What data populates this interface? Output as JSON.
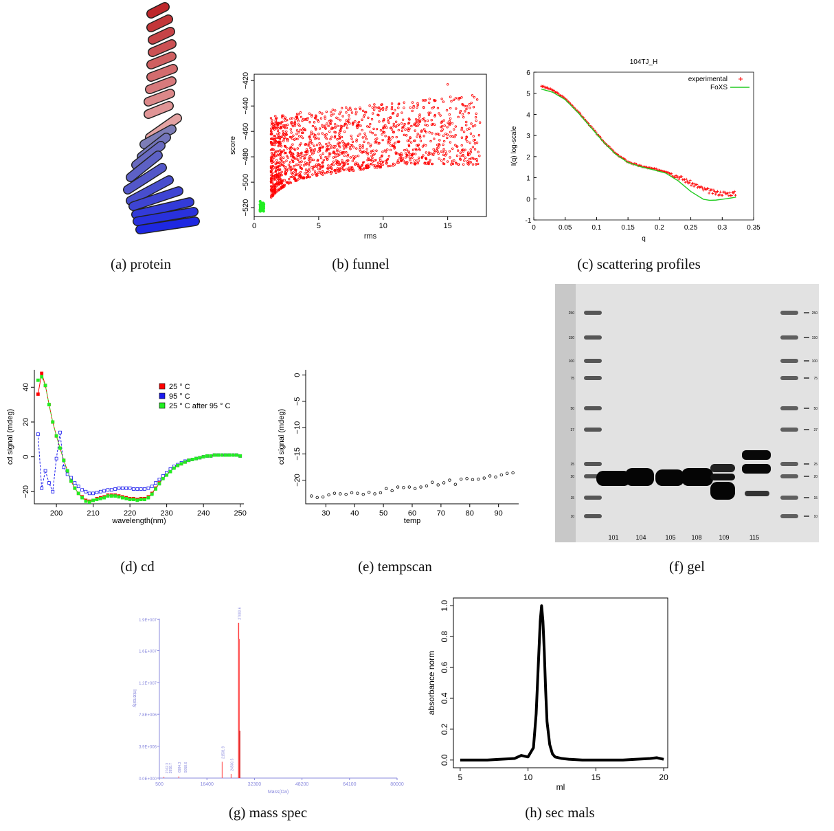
{
  "captions": {
    "a": "(a) protein",
    "b": "(b) funnel",
    "c": "(c) scattering profiles",
    "d": "(d) cd",
    "e": "(e) tempscan",
    "f": "(f) gel",
    "g": "(g) mass spec",
    "h": "(h) sec mals"
  },
  "colors": {
    "red": "#ff0000",
    "green": "#22ee22",
    "blue": "#1a1aee",
    "gel_bg": "#e2e2e2",
    "protein_top": "#c0282a",
    "protein_bottom": "#1c28e0"
  },
  "chart_data": [
    {
      "id": "funnel",
      "type": "scatter",
      "xlabel": "rms",
      "ylabel": "score",
      "xlim": [
        0,
        18
      ],
      "ylim": [
        -527,
        -415
      ],
      "xticks": [
        0,
        5,
        10,
        15
      ],
      "yticks": [
        -520,
        -500,
        -480,
        -460,
        -440,
        -420
      ],
      "series": [
        {
          "color": "#ff0000",
          "description_points": [
            [
              2,
              -490
            ],
            [
              3,
              -480
            ],
            [
              4,
              -470
            ],
            [
              5,
              -462
            ],
            [
              6,
              -458
            ],
            [
              8,
              -455
            ],
            [
              10,
              -452
            ],
            [
              12,
              -450
            ],
            [
              14,
              -448
            ],
            [
              16,
              -444
            ],
            [
              17.5,
              -453
            ],
            [
              15,
              -423
            ]
          ]
        },
        {
          "color": "#22ee22",
          "points": [
            [
              0.5,
              -516
            ],
            [
              0.6,
              -520
            ],
            [
              0.7,
              -523
            ],
            [
              0.55,
              -518
            ],
            [
              0.65,
              -521
            ]
          ]
        }
      ]
    },
    {
      "id": "scattering",
      "type": "line",
      "title": "104TJ_H",
      "xlabel": "q",
      "ylabel": "I(q) log-scale",
      "xlim": [
        0,
        0.35
      ],
      "ylim": [
        -1,
        6
      ],
      "xticks": [
        "0",
        "0.05",
        "0.1",
        "0.15",
        "0.2",
        "0.25",
        "0.3",
        "0.35"
      ],
      "yticks": [
        "-1",
        "0",
        "1",
        "2",
        "3",
        "4",
        "5",
        "6"
      ],
      "legend": [
        "experimental",
        "FoXS"
      ],
      "series": [
        {
          "name": "experimental",
          "color": "#ff0000",
          "x": [
            0.012,
            0.03,
            0.05,
            0.07,
            0.09,
            0.11,
            0.13,
            0.15,
            0.17,
            0.19,
            0.21,
            0.23,
            0.25,
            0.27,
            0.29,
            0.31,
            0.322
          ],
          "y": [
            5.35,
            5.15,
            4.75,
            4.15,
            3.45,
            2.75,
            2.15,
            1.75,
            1.55,
            1.42,
            1.3,
            1.05,
            0.75,
            0.45,
            0.28,
            0.25,
            0.25
          ]
        },
        {
          "name": "FoXS",
          "color": "#22cc22",
          "x": [
            0.012,
            0.03,
            0.05,
            0.07,
            0.09,
            0.11,
            0.13,
            0.15,
            0.17,
            0.19,
            0.21,
            0.23,
            0.25,
            0.27,
            0.28,
            0.29,
            0.31,
            0.322
          ],
          "y": [
            5.2,
            5.05,
            4.7,
            4.1,
            3.42,
            2.72,
            2.12,
            1.72,
            1.52,
            1.38,
            1.22,
            0.85,
            0.35,
            -0.02,
            -0.07,
            -0.06,
            0.02,
            0.08
          ]
        }
      ]
    },
    {
      "id": "cd",
      "type": "line",
      "xlabel": "wavelength(nm)",
      "ylabel": "cd signal (mdeg)",
      "xlim": [
        194,
        251
      ],
      "ylim": [
        -27,
        50
      ],
      "xticks": [
        200,
        210,
        220,
        230,
        240,
        250
      ],
      "yticks": [
        -20,
        0,
        20,
        40
      ],
      "legend": [
        "25 ° C",
        "95 ° C",
        "25 ° C after 95 ° C"
      ],
      "x": [
        195,
        196,
        197,
        198,
        199,
        200,
        201,
        202,
        203,
        204,
        205,
        206,
        207,
        208,
        209,
        210,
        211,
        212,
        213,
        214,
        215,
        216,
        217,
        218,
        219,
        220,
        221,
        222,
        223,
        224,
        225,
        226,
        227,
        228,
        229,
        230,
        231,
        232,
        233,
        234,
        235,
        236,
        237,
        238,
        239,
        240,
        241,
        242,
        243,
        244,
        245,
        246,
        247,
        248,
        249,
        250
      ],
      "series": [
        {
          "name": "25 ° C",
          "color": "#ff0000",
          "y": [
            36,
            48,
            41,
            30,
            20,
            12,
            5,
            -2,
            -8,
            -14,
            -18,
            -21,
            -23,
            -25,
            -25.5,
            -25,
            -24,
            -23.5,
            -23,
            -22,
            -22,
            -22,
            -22.5,
            -23,
            -23.5,
            -24,
            -24,
            -24.5,
            -24,
            -24,
            -23,
            -21,
            -18,
            -15,
            -12,
            -10,
            -8,
            -6,
            -5,
            -4,
            -3,
            -2,
            -1.5,
            -1,
            -0.5,
            0,
            0.5,
            0.5,
            1,
            1,
            1,
            1,
            1,
            1,
            1,
            0.5
          ]
        },
        {
          "name": "95 ° C",
          "color": "#1a1aee",
          "y": [
            13,
            -18,
            -8,
            -15,
            -20,
            -1,
            14,
            -6,
            -10,
            -12,
            -15,
            -17,
            -19,
            -20,
            -21,
            -21,
            -20.5,
            -20,
            -19.5,
            -19,
            -19,
            -18.5,
            -18,
            -18,
            -18,
            -18,
            -18.5,
            -18.5,
            -18.5,
            -18.5,
            -18,
            -17,
            -15,
            -13,
            -11,
            -9,
            -7,
            -5.5,
            -4.5,
            -3.5,
            -2.5,
            -2,
            -1.5,
            -1,
            -0.5,
            0,
            0.5,
            0.5,
            1,
            1,
            1,
            1,
            1,
            1,
            1,
            0.5
          ]
        },
        {
          "name": "25 ° C after 95 ° C",
          "color": "#22ee22",
          "y": [
            44,
            46,
            41,
            30,
            20,
            12,
            5,
            -2,
            -8,
            -14,
            -18,
            -21,
            -23.5,
            -25.5,
            -26,
            -25,
            -24.5,
            -24,
            -23.5,
            -22.5,
            -22.5,
            -22.5,
            -23,
            -23.5,
            -24,
            -24.5,
            -24.5,
            -25,
            -24.5,
            -24.5,
            -23.5,
            -21.5,
            -18.5,
            -15.5,
            -12.5,
            -10.5,
            -8.5,
            -6.5,
            -5,
            -4,
            -3,
            -2,
            -1.5,
            -1,
            -0.5,
            0,
            0.5,
            0.5,
            1,
            1,
            1,
            1,
            1,
            1,
            1,
            0.5
          ]
        }
      ]
    },
    {
      "id": "tempscan",
      "type": "scatter",
      "xlabel": "temp",
      "ylabel": "cd signal (mdeg)",
      "xlim": [
        23,
        97
      ],
      "ylim": [
        -24.5,
        1
      ],
      "xticks": [
        30,
        40,
        50,
        60,
        70,
        80,
        90
      ],
      "yticks": [
        0,
        -5,
        -10,
        -15,
        -20
      ],
      "series": [
        {
          "color": "#000000",
          "x": [
            25,
            27,
            29,
            31,
            33,
            35,
            37,
            39,
            41,
            43,
            45,
            47,
            49,
            51,
            53,
            55,
            57,
            59,
            61,
            63,
            65,
            67,
            69,
            71,
            73,
            75,
            77,
            79,
            81,
            83,
            85,
            87,
            89,
            91,
            93,
            95
          ],
          "y": [
            -23,
            -23.3,
            -23.2,
            -22.8,
            -22.5,
            -22.6,
            -22.7,
            -22.4,
            -22.5,
            -22.7,
            -22.3,
            -22.6,
            -22.4,
            -21.6,
            -22,
            -21.3,
            -21.4,
            -21.3,
            -21.6,
            -21.3,
            -21.1,
            -20.4,
            -20.9,
            -20.5,
            -20,
            -20.8,
            -19.8,
            -19.7,
            -19.9,
            -19.8,
            -19.6,
            -19.2,
            -19.4,
            -19,
            -18.7,
            -18.6
          ]
        }
      ]
    },
    {
      "id": "gel",
      "type": "table",
      "ladder_labels": [
        "250",
        "150",
        "100",
        "75",
        "50",
        "37",
        "25",
        "20",
        "15",
        "10"
      ],
      "lane_labels": [
        "101",
        "104",
        "105",
        "108",
        "109",
        "115"
      ]
    },
    {
      "id": "mass_spec",
      "type": "bar",
      "xlabel": "Mass(Da)",
      "ylabel": "Intensity",
      "xticks": [
        "500",
        "16400",
        "32300",
        "48200",
        "64100",
        "80000"
      ],
      "yticks": [
        "0.0E+000",
        "3.9E+006",
        "7.8E+006",
        "1.2E+007",
        "1.6E+007",
        "1.9E+007"
      ],
      "xlim": [
        500,
        80000
      ],
      "ylim": [
        0,
        19500000
      ],
      "peaks": [
        {
          "mass": 27000,
          "intensity": 19000000,
          "color": "#ff4040"
        },
        {
          "mass": 27200,
          "intensity": 17000000,
          "color": "#ff6060"
        },
        {
          "mass": 27400,
          "intensity": 5800000,
          "color": "#cc0000"
        },
        {
          "mass": 21500,
          "intensity": 2000000,
          "color": "#ff6060"
        },
        {
          "mass": 24500,
          "intensity": 500000,
          "color": "#ff6060"
        },
        {
          "mass": 7000,
          "intensity": 200000,
          "color": "#ff6060"
        },
        {
          "mass": 2000,
          "intensity": 150000,
          "color": "#ff6060"
        }
      ],
      "peak_labels": [
        "27000.6",
        "21501.9",
        "24500.5",
        "6984.3",
        "9058.6",
        "2762.3",
        "3958.7"
      ]
    },
    {
      "id": "sec_mals",
      "type": "line",
      "xlabel": "ml",
      "ylabel": "absorbance norm",
      "xlim": [
        4.5,
        20.3
      ],
      "ylim": [
        -0.05,
        1.05
      ],
      "xticks": [
        5,
        10,
        15,
        20
      ],
      "yticks": [
        "0.0",
        "0.2",
        "0.4",
        "0.6",
        "0.8",
        "1.0"
      ],
      "series": [
        {
          "color": "#000000",
          "x": [
            5,
            6,
            7,
            8,
            9,
            9.5,
            10,
            10.4,
            10.6,
            10.8,
            10.9,
            11.0,
            11.1,
            11.2,
            11.3,
            11.4,
            11.6,
            11.8,
            12,
            12.5,
            13,
            14,
            15,
            16,
            17,
            18,
            19,
            19.5,
            20
          ],
          "y": [
            0,
            0,
            0,
            0.005,
            0.01,
            0.03,
            0.02,
            0.08,
            0.3,
            0.7,
            0.9,
            1.0,
            0.9,
            0.7,
            0.45,
            0.25,
            0.1,
            0.04,
            0.02,
            0.01,
            0.005,
            0,
            0,
            0,
            0,
            0.005,
            0.01,
            0.015,
            0.005
          ]
        }
      ]
    }
  ]
}
